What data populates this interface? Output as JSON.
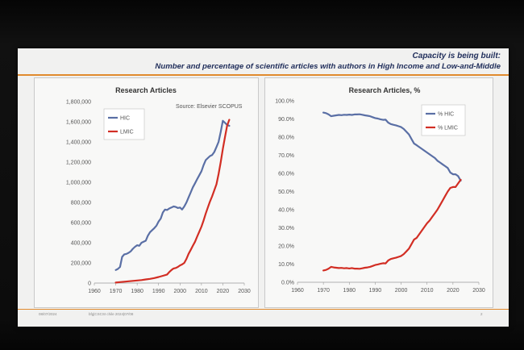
{
  "slide": {
    "title_line1": "Capacity is being built:",
    "title_line2": "Number and percentage of scientific articles with authors in High Income and Low-and-Middle",
    "footer_left": "08/07/2024",
    "footer_mid": "bfg|CSCSI chile 2024|07/08",
    "page_number": "2"
  },
  "colors": {
    "hic": "#5a6fa5",
    "lmic": "#d22e24",
    "accent": "#e08a2e"
  },
  "chart_data": [
    {
      "type": "line",
      "title": "Research Articles",
      "annotation": "Source: Elsevier SCOPUS",
      "xlim": [
        1960,
        2030
      ],
      "ylim": [
        0,
        1800000
      ],
      "x_ticks": [
        1960,
        1970,
        1980,
        1990,
        2000,
        2010,
        2020,
        2030
      ],
      "y_ticks": [
        0,
        200000,
        400000,
        600000,
        800000,
        1000000,
        1200000,
        1400000,
        1600000,
        1800000
      ],
      "y_tick_labels": [
        "0",
        "200,000",
        "400,000",
        "600,000",
        "800,000",
        "1,000,000",
        "1,200,000",
        "1,400,000",
        "1,600,000",
        "1,800,000"
      ],
      "legend_placement": "top-left",
      "series": [
        {
          "name": "HIC",
          "color": "#5a6fa5",
          "x": [
            1970,
            1971,
            1972,
            1973,
            1974,
            1975,
            1976,
            1977,
            1978,
            1979,
            1980,
            1981,
            1982,
            1983,
            1984,
            1985,
            1986,
            1987,
            1988,
            1989,
            1990,
            1991,
            1992,
            1993,
            1994,
            1995,
            1996,
            1997,
            1998,
            1999,
            2000,
            2001,
            2002,
            2003,
            2004,
            2005,
            2006,
            2007,
            2008,
            2009,
            2010,
            2011,
            2012,
            2013,
            2014,
            2015,
            2016,
            2017,
            2018,
            2019,
            2020,
            2021,
            2022,
            2023
          ],
          "y": [
            130000,
            140000,
            160000,
            260000,
            285000,
            290000,
            300000,
            315000,
            340000,
            360000,
            375000,
            370000,
            400000,
            410000,
            420000,
            470000,
            505000,
            525000,
            545000,
            570000,
            610000,
            640000,
            700000,
            730000,
            725000,
            740000,
            750000,
            760000,
            755000,
            745000,
            750000,
            730000,
            760000,
            800000,
            850000,
            900000,
            950000,
            990000,
            1030000,
            1070000,
            1110000,
            1170000,
            1220000,
            1240000,
            1260000,
            1270000,
            1300000,
            1350000,
            1400000,
            1500000,
            1610000,
            1590000,
            1570000,
            1560000
          ]
        },
        {
          "name": "LMIC",
          "color": "#d22e24",
          "x": [
            1970,
            1972,
            1974,
            1976,
            1978,
            1980,
            1982,
            1984,
            1986,
            1988,
            1990,
            1992,
            1994,
            1995,
            1996,
            1997,
            1998,
            1999,
            2000,
            2001,
            2002,
            2003,
            2004,
            2005,
            2006,
            2007,
            2008,
            2009,
            2010,
            2011,
            2012,
            2013,
            2014,
            2015,
            2016,
            2017,
            2018,
            2019,
            2020,
            2021,
            2022,
            2023
          ],
          "y": [
            5000,
            10000,
            14000,
            18000,
            22000,
            26000,
            30000,
            36000,
            42000,
            50000,
            60000,
            72000,
            85000,
            110000,
            130000,
            145000,
            150000,
            160000,
            175000,
            185000,
            200000,
            240000,
            290000,
            330000,
            370000,
            410000,
            460000,
            510000,
            560000,
            620000,
            690000,
            750000,
            810000,
            860000,
            920000,
            980000,
            1080000,
            1200000,
            1330000,
            1450000,
            1560000,
            1620000
          ]
        }
      ]
    },
    {
      "type": "line",
      "title": "Research Articles, %",
      "xlim": [
        1960,
        2030
      ],
      "ylim": [
        0,
        100
      ],
      "x_ticks": [
        1960,
        1970,
        1980,
        1990,
        2000,
        2010,
        2020,
        2030
      ],
      "y_ticks": [
        0,
        10,
        20,
        30,
        40,
        50,
        60,
        70,
        80,
        90,
        100
      ],
      "y_tick_labels": [
        "0.0%",
        "10.0%",
        "20.0%",
        "30.0%",
        "40.0%",
        "50.0%",
        "60.0%",
        "70.0%",
        "80.0%",
        "90.0%",
        "100.0%"
      ],
      "legend_placement": "top-right",
      "series": [
        {
          "name": "% HIC",
          "color": "#5a6fa5",
          "x": [
            1970,
            1971,
            1972,
            1973,
            1974,
            1975,
            1976,
            1977,
            1978,
            1979,
            1980,
            1981,
            1982,
            1983,
            1984,
            1985,
            1986,
            1987,
            1988,
            1989,
            1990,
            1991,
            1992,
            1993,
            1994,
            1995,
            1996,
            1997,
            1998,
            1999,
            2000,
            2001,
            2002,
            2003,
            2004,
            2005,
            2006,
            2007,
            2008,
            2009,
            2010,
            2011,
            2012,
            2013,
            2014,
            2015,
            2016,
            2017,
            2018,
            2019,
            2020,
            2021,
            2022,
            2023
          ],
          "y": [
            93.5,
            93.2,
            92.5,
            91.5,
            91.8,
            92.0,
            92.2,
            92.1,
            92.3,
            92.2,
            92.4,
            92.2,
            92.5,
            92.5,
            92.6,
            92.3,
            92.0,
            91.8,
            91.5,
            91.0,
            90.5,
            90.2,
            89.8,
            89.5,
            89.6,
            88.0,
            87.2,
            86.8,
            86.5,
            86.0,
            85.5,
            84.5,
            83.0,
            81.5,
            79.0,
            76.5,
            75.5,
            74.5,
            73.5,
            72.5,
            71.5,
            70.5,
            69.5,
            68.5,
            67.0,
            66.0,
            65.0,
            64.0,
            63.0,
            60.5,
            59.5,
            59.5,
            58.5,
            56.0
          ]
        },
        {
          "name": "% LMIC",
          "color": "#d22e24",
          "x": [
            1970,
            1971,
            1972,
            1973,
            1974,
            1975,
            1976,
            1977,
            1978,
            1979,
            1980,
            1981,
            1982,
            1983,
            1984,
            1985,
            1986,
            1987,
            1988,
            1989,
            1990,
            1991,
            1992,
            1993,
            1994,
            1995,
            1996,
            1997,
            1998,
            1999,
            2000,
            2001,
            2002,
            2003,
            2004,
            2005,
            2006,
            2007,
            2008,
            2009,
            2010,
            2011,
            2012,
            2013,
            2014,
            2015,
            2016,
            2017,
            2018,
            2019,
            2020,
            2021,
            2022,
            2023
          ],
          "y": [
            6.5,
            6.8,
            7.5,
            8.5,
            8.2,
            8.0,
            7.8,
            7.9,
            7.7,
            7.8,
            7.6,
            7.8,
            7.5,
            7.5,
            7.4,
            7.7,
            8.0,
            8.2,
            8.5,
            9.0,
            9.5,
            9.8,
            10.2,
            10.5,
            10.4,
            12.0,
            12.8,
            13.2,
            13.5,
            14.0,
            14.5,
            15.5,
            17.0,
            18.5,
            21.0,
            23.5,
            24.5,
            26.5,
            28.5,
            30.5,
            32.5,
            34.0,
            36.0,
            38.0,
            40.0,
            42.5,
            45.0,
            47.5,
            50.0,
            52.0,
            52.5,
            52.5,
            54.5,
            56.5
          ]
        }
      ]
    }
  ]
}
